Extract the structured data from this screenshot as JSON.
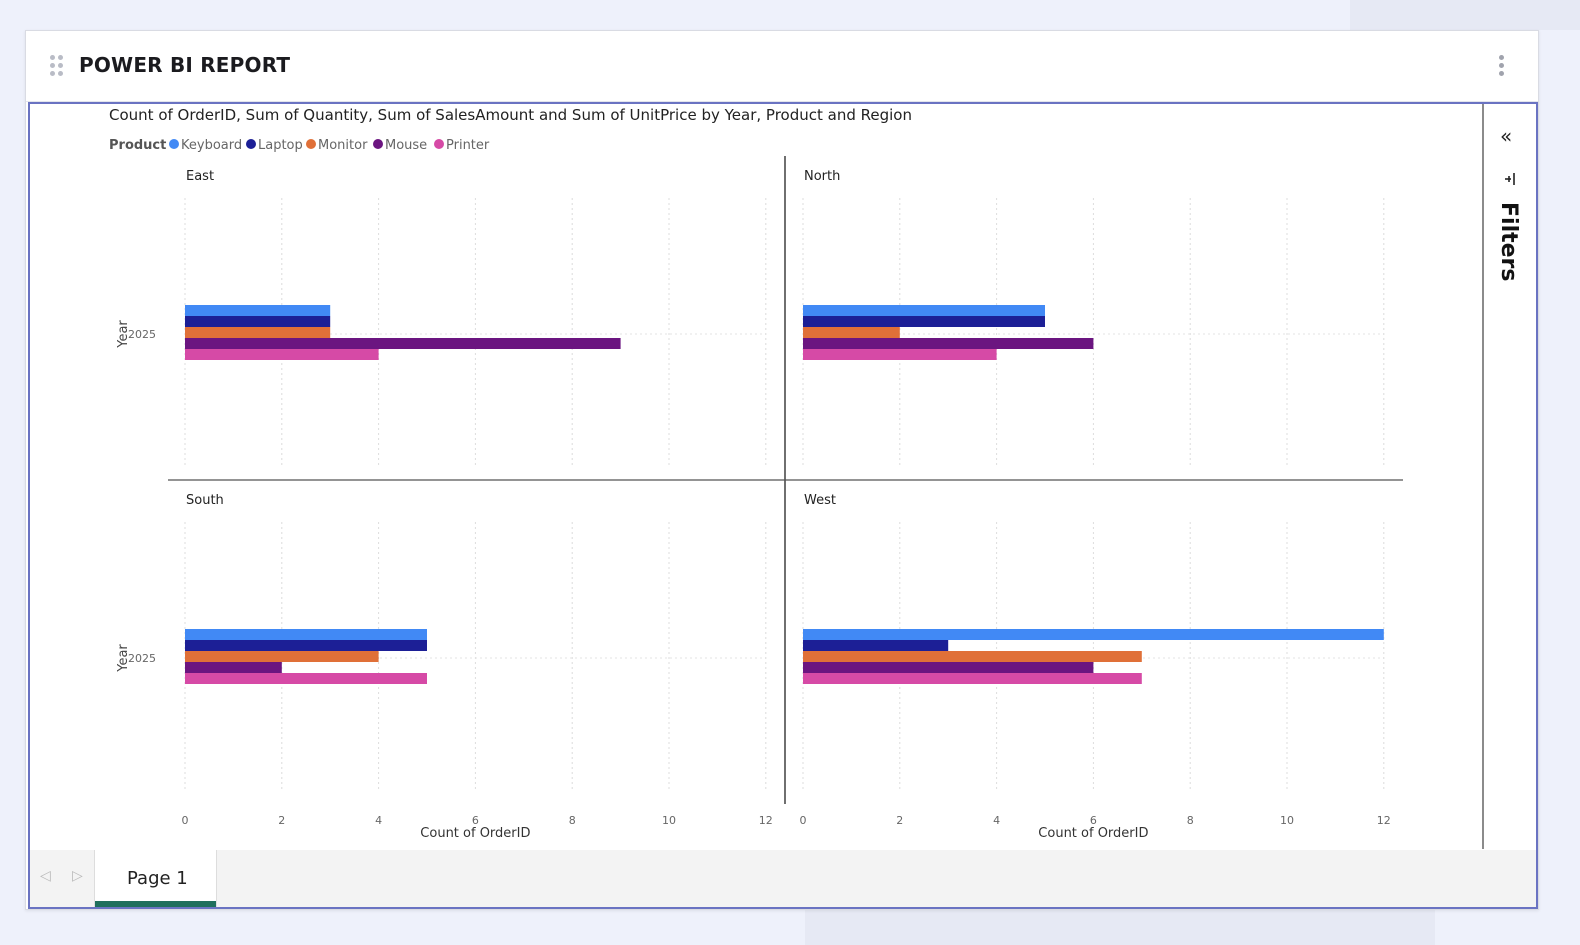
{
  "header": {
    "title": "POWER BI REPORT"
  },
  "filters": {
    "label": "Filters",
    "collapse_icon": "double-chevron-left-icon",
    "filter_icon": "filter-icon"
  },
  "pages": {
    "items": [
      {
        "label": "Page 1",
        "active": true
      }
    ],
    "prev_icon": "prev-page-icon",
    "next_icon": "next-page-icon"
  },
  "chart_data": {
    "type": "bar",
    "orientation": "horizontal",
    "title": "Count of OrderID, Sum of Quantity, Sum of SalesAmount and Sum of UnitPrice by Year, Product and Region",
    "legend_title": "Product",
    "legend_placement": "top-left",
    "xlabel": "Count of OrderID",
    "ylabel": "Year",
    "xlim": [
      0,
      12
    ],
    "xticks": [
      "0",
      "2",
      "4",
      "6",
      "8",
      "10",
      "12"
    ],
    "grid": true,
    "series": [
      {
        "name": "Keyboard",
        "color": "#4189f5"
      },
      {
        "name": "Laptop",
        "color": "#1c1f96"
      },
      {
        "name": "Monitor",
        "color": "#e07038"
      },
      {
        "name": "Mouse",
        "color": "#6b1580"
      },
      {
        "name": "Printer",
        "color": "#d64aa6"
      }
    ],
    "panels": [
      {
        "region": "East",
        "category": "2025",
        "values": [
          3,
          3,
          3,
          9,
          4
        ]
      },
      {
        "region": "North",
        "category": "2025",
        "values": [
          5,
          5,
          2,
          6,
          4
        ]
      },
      {
        "region": "South",
        "category": "2025",
        "values": [
          5,
          5,
          4,
          2,
          5
        ]
      },
      {
        "region": "West",
        "category": "2025",
        "values": [
          12,
          3,
          7,
          6,
          7
        ]
      }
    ]
  }
}
